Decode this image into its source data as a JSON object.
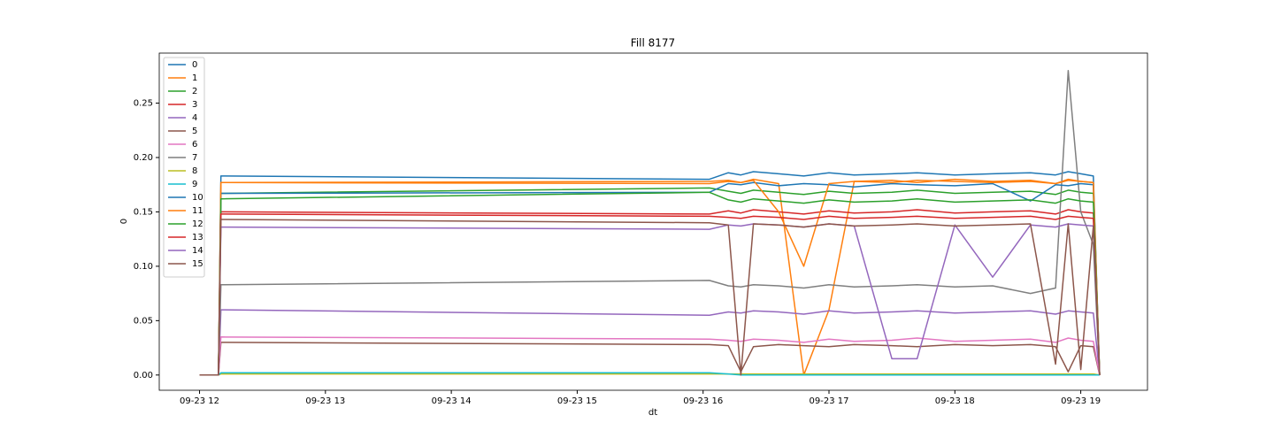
{
  "chart_data": {
    "type": "line",
    "title": "Fill 8177",
    "x_label": "dt",
    "y_label": "0",
    "x": [
      12.0,
      12.15,
      12.17,
      16.05,
      16.2,
      16.3,
      16.4,
      16.6,
      16.8,
      17.0,
      17.2,
      17.5,
      17.7,
      18.0,
      18.3,
      18.6,
      18.8,
      18.9,
      19.0,
      19.1,
      19.15
    ],
    "xlim": [
      11.68,
      19.53
    ],
    "xticks": [
      {
        "value": 12,
        "label": "09-23 12"
      },
      {
        "value": 13,
        "label": "09-23 13"
      },
      {
        "value": 14,
        "label": "09-23 14"
      },
      {
        "value": 15,
        "label": "09-23 15"
      },
      {
        "value": 16,
        "label": "09-23 16"
      },
      {
        "value": 17,
        "label": "09-23 17"
      },
      {
        "value": 18,
        "label": "09-23 18"
      },
      {
        "value": 19,
        "label": "09-23 19"
      }
    ],
    "ylim": [
      -0.014,
      0.296
    ],
    "yticks": [
      {
        "value": 0,
        "label": "0.00"
      },
      {
        "value": 0.05,
        "label": "0.05"
      },
      {
        "value": 0.1,
        "label": "0.10"
      },
      {
        "value": 0.15,
        "label": "0.15"
      },
      {
        "value": 0.2,
        "label": "0.20"
      },
      {
        "value": 0.25,
        "label": "0.25"
      }
    ],
    "legend": "upper left",
    "series": [
      {
        "name": "0",
        "color": "#1f77b4",
        "values": [
          0,
          0,
          0.183,
          0.18,
          0.186,
          0.184,
          0.187,
          0.185,
          0.183,
          0.186,
          0.184,
          0.185,
          0.186,
          0.184,
          0.185,
          0.186,
          0.184,
          0.187,
          0.185,
          0.183,
          0
        ]
      },
      {
        "name": "1",
        "color": "#ff7f0e",
        "values": [
          0,
          0,
          0.177,
          0.178,
          0.179,
          0.177,
          0.18,
          0.176,
          0.0,
          0.06,
          0.178,
          0.179,
          0.177,
          0.18,
          0.178,
          0.179,
          0.176,
          0.18,
          0.178,
          0.177,
          0
        ]
      },
      {
        "name": "2",
        "color": "#2ca02c",
        "values": [
          0,
          0,
          0.167,
          0.172,
          0.169,
          0.167,
          0.17,
          0.168,
          0.166,
          0.169,
          0.167,
          0.168,
          0.17,
          0.167,
          0.168,
          0.169,
          0.166,
          0.17,
          0.168,
          0.167,
          0
        ]
      },
      {
        "name": "3",
        "color": "#d62728",
        "values": [
          0,
          0,
          0.15,
          0.148,
          0.151,
          0.149,
          0.152,
          0.15,
          0.148,
          0.151,
          0.149,
          0.15,
          0.152,
          0.149,
          0.15,
          0.151,
          0.148,
          0.152,
          0.15,
          0.149,
          0
        ]
      },
      {
        "name": "4",
        "color": "#9467bd",
        "values": [
          0,
          0,
          0.06,
          0.055,
          0.058,
          0.057,
          0.059,
          0.058,
          0.056,
          0.059,
          0.057,
          0.058,
          0.059,
          0.057,
          0.058,
          0.059,
          0.056,
          0.059,
          0.058,
          0.057,
          0
        ]
      },
      {
        "name": "5",
        "color": "#8c564b",
        "values": [
          0,
          0,
          0.03,
          0.028,
          0.027,
          0.003,
          0.026,
          0.028,
          0.027,
          0.026,
          0.028,
          0.027,
          0.026,
          0.028,
          0.027,
          0.028,
          0.026,
          0.003,
          0.027,
          0.026,
          0
        ]
      },
      {
        "name": "6",
        "color": "#e377c2",
        "values": [
          0,
          0,
          0.035,
          0.033,
          0.032,
          0.031,
          0.033,
          0.032,
          0.03,
          0.033,
          0.031,
          0.032,
          0.034,
          0.031,
          0.032,
          0.033,
          0.03,
          0.034,
          0.032,
          0.031,
          0
        ]
      },
      {
        "name": "7",
        "color": "#7f7f7f",
        "values": [
          0,
          0,
          0.083,
          0.087,
          0.082,
          0.081,
          0.083,
          0.082,
          0.08,
          0.083,
          0.081,
          0.082,
          0.083,
          0.081,
          0.082,
          0.075,
          0.08,
          0.28,
          0.15,
          0.12,
          0
        ]
      },
      {
        "name": "8",
        "color": "#bcbd22",
        "values": [
          0,
          0,
          0.001,
          0.001,
          0.001,
          0.001,
          0.001,
          0.001,
          0.001,
          0.001,
          0.001,
          0.001,
          0.001,
          0.001,
          0.001,
          0.001,
          0.001,
          0.001,
          0.001,
          0.001,
          0
        ]
      },
      {
        "name": "9",
        "color": "#17becf",
        "values": [
          0,
          0,
          0.002,
          0.002,
          0.001,
          0,
          0,
          0,
          0,
          0,
          0,
          0,
          0,
          0,
          0,
          0,
          0,
          0,
          0,
          0,
          0
        ]
      },
      {
        "name": "10",
        "color": "#1f77b4",
        "values": [
          0,
          0,
          0.167,
          0.168,
          0.176,
          0.175,
          0.177,
          0.174,
          0.176,
          0.175,
          0.173,
          0.176,
          0.175,
          0.174,
          0.176,
          0.16,
          0.175,
          0.174,
          0.176,
          0.175,
          0
        ]
      },
      {
        "name": "11",
        "color": "#ff7f0e",
        "values": [
          0,
          0,
          0.177,
          0.176,
          0.178,
          0.177,
          0.179,
          0.15,
          0.1,
          0.176,
          0.178,
          0.177,
          0.179,
          0.178,
          0.177,
          0.178,
          0.176,
          0.179,
          0.178,
          0.177,
          0
        ]
      },
      {
        "name": "12",
        "color": "#2ca02c",
        "values": [
          0,
          0,
          0.162,
          0.168,
          0.161,
          0.159,
          0.162,
          0.16,
          0.158,
          0.161,
          0.159,
          0.16,
          0.162,
          0.159,
          0.16,
          0.161,
          0.158,
          0.162,
          0.16,
          0.159,
          0
        ]
      },
      {
        "name": "13",
        "color": "#d62728",
        "values": [
          0,
          0,
          0.148,
          0.146,
          0.145,
          0.144,
          0.146,
          0.145,
          0.143,
          0.146,
          0.144,
          0.145,
          0.146,
          0.144,
          0.145,
          0.146,
          0.143,
          0.146,
          0.145,
          0.144,
          0
        ]
      },
      {
        "name": "14",
        "color": "#9467bd",
        "values": [
          0,
          0,
          0.136,
          0.134,
          0.138,
          0.137,
          0.139,
          0.138,
          0.136,
          0.139,
          0.137,
          0.015,
          0.015,
          0.138,
          0.09,
          0.138,
          0.136,
          0.139,
          0.138,
          0.137,
          0
        ]
      },
      {
        "name": "15",
        "color": "#8c564b",
        "values": [
          0,
          0,
          0.143,
          0.14,
          0.138,
          0.0,
          0.139,
          0.138,
          0.136,
          0.139,
          0.137,
          0.138,
          0.139,
          0.137,
          0.138,
          0.139,
          0.01,
          0.139,
          0.005,
          0.137,
          0
        ]
      }
    ]
  }
}
